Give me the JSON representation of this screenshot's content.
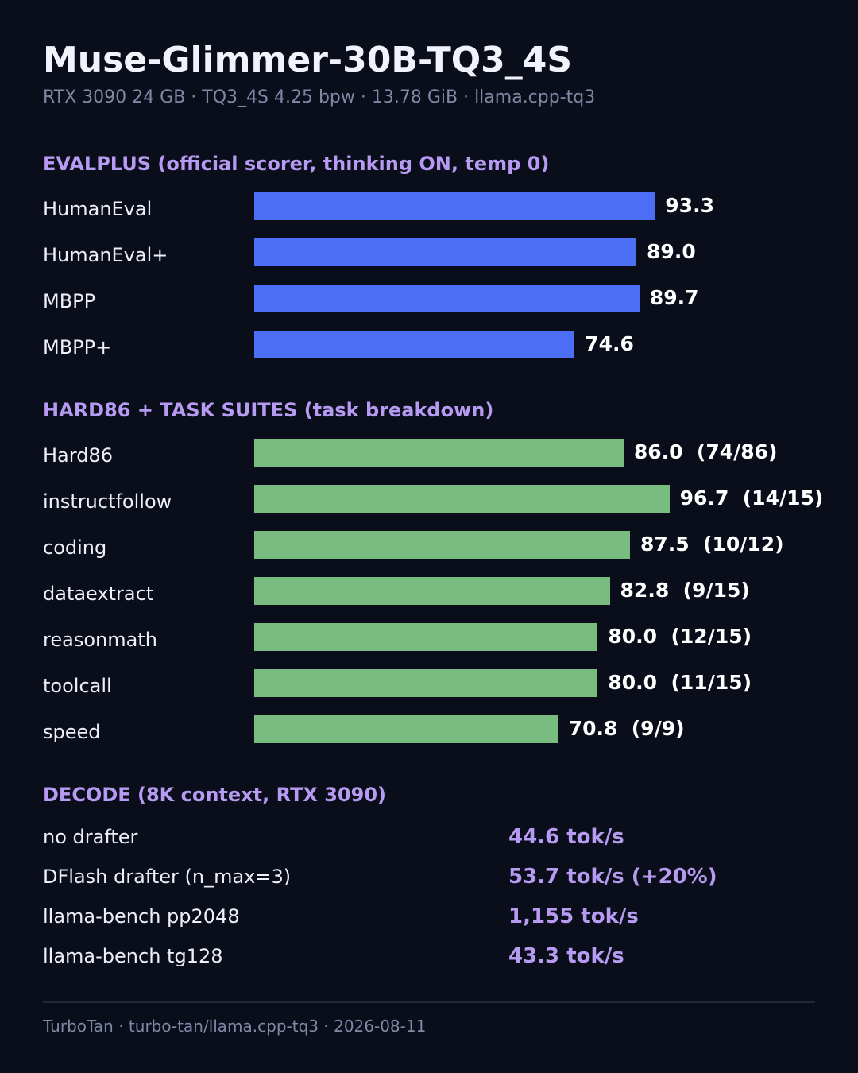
{
  "title": "Muse-Glimmer-30B-TQ3_4S",
  "subtitle": "RTX 3090 24 GB · TQ3_4S 4.25 bpw · 13.78 GiB · llama.cpp-tq3",
  "colors": {
    "background": "#0a0e1a",
    "section_title": "#b79af2",
    "evalplus_bar": "#4b6ef5",
    "task_bar": "#78bc80",
    "decode_value": "#b79af2",
    "value_text": "#ffffff",
    "muted_text": "#7f88a6"
  },
  "chart_data": [
    {
      "type": "bar",
      "orientation": "horizontal",
      "title": "EVALPLUS (official scorer, thinking ON, temp 0)",
      "categories": [
        "HumanEval",
        "HumanEval+",
        "MBPP",
        "MBPP+"
      ],
      "values": [
        93.3,
        89.0,
        89.7,
        74.6
      ],
      "value_labels": [
        "93.3",
        "89.0",
        "89.7",
        "74.6"
      ],
      "xlim": [
        0,
        100
      ],
      "grid": false,
      "color": "#4b6ef5"
    },
    {
      "type": "bar",
      "orientation": "horizontal",
      "title": "HARD86 + TASK SUITES (task breakdown)",
      "categories": [
        "Hard86",
        "instructfollow",
        "coding",
        "dataextract",
        "reasonmath",
        "toolcall",
        "speed"
      ],
      "values": [
        86.0,
        96.7,
        87.5,
        82.8,
        80.0,
        80.0,
        70.8
      ],
      "value_labels": [
        "86.0  (74/86)",
        "96.7  (14/15)",
        "87.5  (10/12)",
        "82.8  (9/15)",
        "80.0  (12/15)",
        "80.0  (11/15)",
        "70.8  (9/9)"
      ],
      "xlim": [
        0,
        100
      ],
      "grid": false,
      "color": "#78bc80"
    }
  ],
  "decode": {
    "title": "DECODE (8K context, RTX 3090)",
    "rows": [
      {
        "label": "no drafter",
        "value": "44.6 tok/s"
      },
      {
        "label": "DFlash drafter (n_max=3)",
        "value": "53.7 tok/s (+20%)"
      },
      {
        "label": "llama-bench pp2048",
        "value": "1,155 tok/s"
      },
      {
        "label": "llama-bench tg128",
        "value": "43.3 tok/s"
      }
    ]
  },
  "footer": "TurboTan · turbo-tan/llama.cpp-tq3 · 2026-08-11"
}
